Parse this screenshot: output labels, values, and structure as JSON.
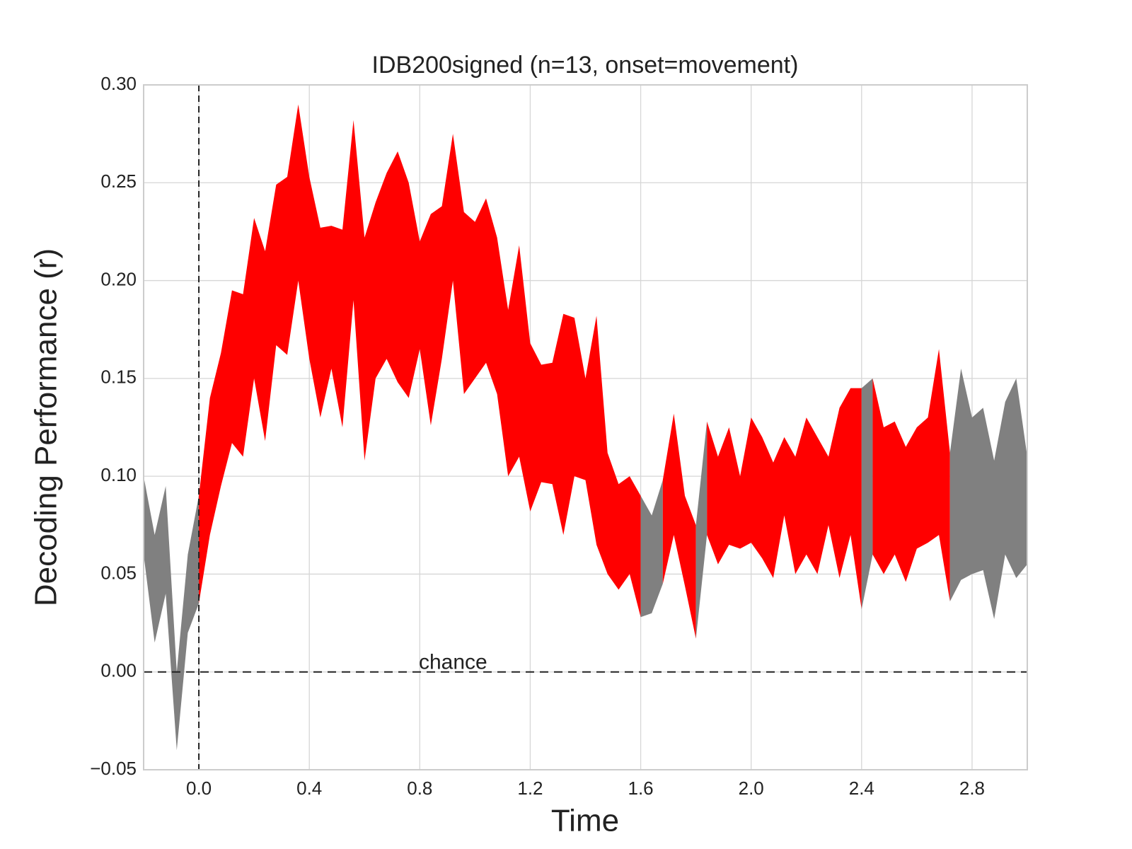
{
  "chart_data": {
    "type": "band",
    "title": "IDB200signed (n=13, onset=movement)",
    "x_label": "Time",
    "y_label": "Decoding Performance (r)",
    "annotation": "chance",
    "x": [
      -0.2,
      -0.16,
      -0.12,
      -0.08,
      -0.04,
      0.0,
      0.04,
      0.08,
      0.12,
      0.16,
      0.2,
      0.24,
      0.28,
      0.32,
      0.36,
      0.4,
      0.44,
      0.48,
      0.52,
      0.56,
      0.6,
      0.64,
      0.68,
      0.72,
      0.76,
      0.8,
      0.84,
      0.88,
      0.92,
      0.96,
      1.0,
      1.04,
      1.08,
      1.12,
      1.16,
      1.2,
      1.24,
      1.28,
      1.32,
      1.36,
      1.4,
      1.44,
      1.48,
      1.52,
      1.56,
      1.6,
      1.64,
      1.68,
      1.72,
      1.76,
      1.8,
      1.84,
      1.88,
      1.92,
      1.96,
      2.0,
      2.04,
      2.08,
      2.12,
      2.16,
      2.2,
      2.24,
      2.28,
      2.32,
      2.36,
      2.4,
      2.44,
      2.48,
      2.52,
      2.56,
      2.6,
      2.64,
      2.68,
      2.72,
      2.76,
      2.8,
      2.84,
      2.88,
      2.92,
      2.96,
      3.0
    ],
    "lower": [
      0.06,
      0.015,
      0.04,
      -0.04,
      0.02,
      0.035,
      0.07,
      0.095,
      0.117,
      0.11,
      0.15,
      0.118,
      0.167,
      0.162,
      0.2,
      0.16,
      0.13,
      0.155,
      0.125,
      0.19,
      0.108,
      0.15,
      0.16,
      0.148,
      0.14,
      0.165,
      0.126,
      0.16,
      0.2,
      0.142,
      0.15,
      0.158,
      0.142,
      0.1,
      0.11,
      0.082,
      0.097,
      0.096,
      0.07,
      0.1,
      0.098,
      0.065,
      0.05,
      0.042,
      0.05,
      0.028,
      0.03,
      0.045,
      0.07,
      0.044,
      0.017,
      0.07,
      0.055,
      0.065,
      0.063,
      0.066,
      0.058,
      0.048,
      0.08,
      0.05,
      0.06,
      0.05,
      0.075,
      0.048,
      0.07,
      0.032,
      0.06,
      0.05,
      0.06,
      0.046,
      0.063,
      0.066,
      0.07,
      0.036,
      0.047,
      0.05,
      0.052,
      0.027,
      0.06,
      0.048,
      0.055
    ],
    "upper": [
      0.1,
      0.07,
      0.095,
      0.0,
      0.06,
      0.09,
      0.14,
      0.163,
      0.195,
      0.193,
      0.232,
      0.215,
      0.249,
      0.253,
      0.29,
      0.253,
      0.227,
      0.228,
      0.226,
      0.282,
      0.222,
      0.24,
      0.255,
      0.266,
      0.25,
      0.22,
      0.234,
      0.238,
      0.275,
      0.235,
      0.23,
      0.242,
      0.222,
      0.185,
      0.218,
      0.168,
      0.157,
      0.158,
      0.183,
      0.181,
      0.15,
      0.182,
      0.112,
      0.096,
      0.1,
      0.09,
      0.08,
      0.098,
      0.132,
      0.09,
      0.075,
      0.128,
      0.11,
      0.125,
      0.1,
      0.13,
      0.12,
      0.107,
      0.12,
      0.11,
      0.13,
      0.12,
      0.11,
      0.135,
      0.145,
      0.145,
      0.15,
      0.125,
      0.128,
      0.115,
      0.125,
      0.13,
      0.165,
      0.112,
      0.155,
      0.13,
      0.135,
      0.108,
      0.138,
      0.15,
      0.11
    ],
    "significant": [
      false,
      false,
      false,
      false,
      false,
      true,
      true,
      true,
      true,
      true,
      true,
      true,
      true,
      true,
      true,
      true,
      true,
      true,
      true,
      true,
      true,
      true,
      true,
      true,
      true,
      true,
      true,
      true,
      true,
      true,
      true,
      true,
      true,
      true,
      true,
      true,
      true,
      true,
      true,
      true,
      true,
      true,
      true,
      true,
      true,
      false,
      false,
      true,
      true,
      true,
      false,
      true,
      true,
      true,
      true,
      true,
      true,
      true,
      true,
      true,
      true,
      true,
      true,
      true,
      true,
      false,
      true,
      true,
      true,
      true,
      true,
      true,
      true,
      false,
      false,
      false,
      false,
      false,
      false,
      false,
      false
    ],
    "color": "#ff0000",
    "nonsignificant_color": "#808080",
    "vline": 0,
    "hline": 0,
    "xlim": [
      -0.2,
      3.0
    ],
    "ylim": [
      -0.05,
      0.3
    ],
    "xticks": [
      {
        "value": 0,
        "label": "0.0"
      },
      0.4,
      0.8,
      1.2,
      1.6,
      {
        "value": 2,
        "label": "2.0"
      },
      2.4,
      2.8
    ],
    "yticks": [
      {
        "value": -0.05,
        "label": "−0.05"
      },
      {
        "value": 0,
        "label": "0.00"
      },
      0.05,
      {
        "value": 0.1,
        "label": "0.10"
      },
      0.15,
      {
        "value": 0.2,
        "label": "0.20"
      },
      0.25,
      {
        "value": 0.3,
        "label": "0.30"
      }
    ],
    "grid": true
  }
}
